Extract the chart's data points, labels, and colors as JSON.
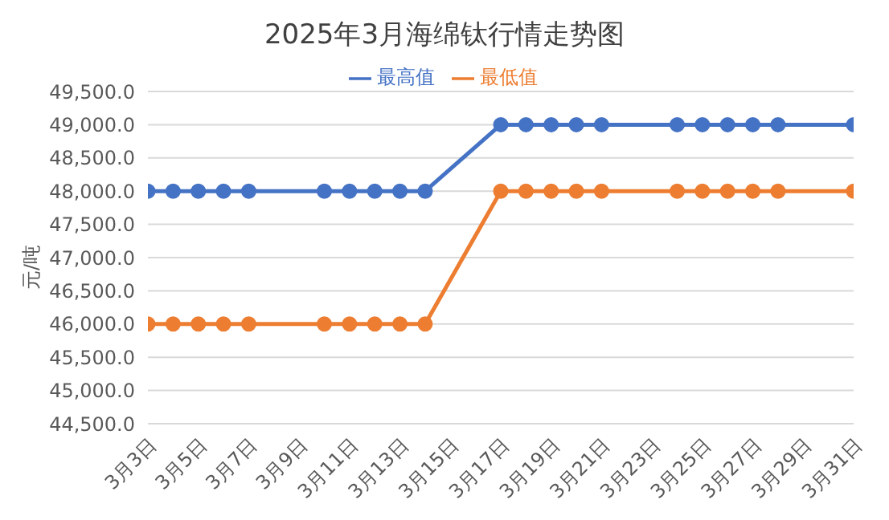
{
  "chart_data": {
    "type": "line",
    "title": "2025年3月海绵钛行情走势图",
    "ylabel": "元/吨",
    "x": [
      "2025-03-03",
      "2025-03-04",
      "2025-03-05",
      "2025-03-06",
      "2025-03-07",
      "2025-03-10",
      "2025-03-11",
      "2025-03-12",
      "2025-03-13",
      "2025-03-14",
      "2025-03-17",
      "2025-03-18",
      "2025-03-19",
      "2025-03-20",
      "2025-03-21",
      "2025-03-24",
      "2025-03-25",
      "2025-03-26",
      "2025-03-27",
      "2025-03-28",
      "2025-03-31"
    ],
    "series": [
      {
        "name": "最高值",
        "color": "#4472c4",
        "values": [
          48000,
          48000,
          48000,
          48000,
          48000,
          48000,
          48000,
          48000,
          48000,
          48000,
          49000,
          49000,
          49000,
          49000,
          49000,
          49000,
          49000,
          49000,
          49000,
          49000,
          49000
        ]
      },
      {
        "name": "最低值",
        "color": "#ed7d31",
        "values": [
          46000,
          46000,
          46000,
          46000,
          46000,
          46000,
          46000,
          46000,
          46000,
          46000,
          48000,
          48000,
          48000,
          48000,
          48000,
          48000,
          48000,
          48000,
          48000,
          48000,
          48000
        ]
      }
    ],
    "xlim": [
      "2025-03-03",
      "2025-03-31"
    ],
    "xticks": [
      {
        "value": "2025-03-03",
        "label": "3月3日"
      },
      {
        "value": "2025-03-05",
        "label": "3月5日"
      },
      {
        "value": "2025-03-07",
        "label": "3月7日"
      },
      {
        "value": "2025-03-09",
        "label": "3月9日"
      },
      {
        "value": "2025-03-11",
        "label": "3月11日"
      },
      {
        "value": "2025-03-13",
        "label": "3月13日"
      },
      {
        "value": "2025-03-15",
        "label": "3月15日"
      },
      {
        "value": "2025-03-17",
        "label": "3月17日"
      },
      {
        "value": "2025-03-19",
        "label": "3月19日"
      },
      {
        "value": "2025-03-21",
        "label": "3月21日"
      },
      {
        "value": "2025-03-23",
        "label": "3月23日"
      },
      {
        "value": "2025-03-25",
        "label": "3月25日"
      },
      {
        "value": "2025-03-27",
        "label": "3月27日"
      },
      {
        "value": "2025-03-29",
        "label": "3月29日"
      },
      {
        "value": "2025-03-31",
        "label": "3月31日"
      }
    ],
    "ylim": [
      44500,
      49500
    ],
    "yticks": [
      {
        "value": 44500,
        "label": "44,500.0"
      },
      {
        "value": 45000,
        "label": "45,000.0"
      },
      {
        "value": 45500,
        "label": "45,500.0"
      },
      {
        "value": 46000,
        "label": "46,000.0"
      },
      {
        "value": 46500,
        "label": "46,500.0"
      },
      {
        "value": 47000,
        "label": "47,000.0"
      },
      {
        "value": 47500,
        "label": "47,500.0"
      },
      {
        "value": 48000,
        "label": "48,000.0"
      },
      {
        "value": 48500,
        "label": "48,500.0"
      },
      {
        "value": 49000,
        "label": "49,000.0"
      },
      {
        "value": 49500,
        "label": "49,500.0"
      }
    ],
    "grid": "y",
    "legend": "top",
    "marker": "circle",
    "line_style": "solid"
  }
}
